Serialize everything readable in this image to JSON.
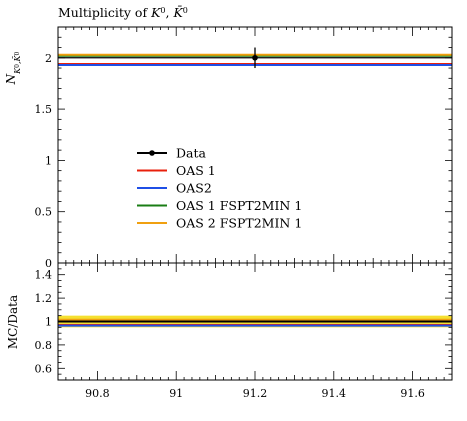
{
  "chart_data": {
    "type": "line",
    "title": "Multiplicity of K⁰, K̄⁰",
    "main": {
      "ylabel": "N_{K⁰,K̄⁰}",
      "xlim": [
        90.7,
        91.7
      ],
      "ylim": [
        0,
        2.3
      ],
      "yticks": [
        0,
        0.5,
        1,
        1.5,
        2
      ],
      "ytick_labels": [
        "0",
        "0.5",
        "1",
        "1.5",
        "2"
      ],
      "data": {
        "name": "Data",
        "x": 91.2,
        "y": 2.0,
        "err": 0.1,
        "color": "#000000"
      },
      "series": [
        {
          "name": "OAS 1",
          "value": 1.94,
          "color": "#e8200c"
        },
        {
          "name": "OAS2",
          "value": 1.93,
          "color": "#1f4fe6"
        },
        {
          "name": "OAS 1 FSPT2MIN 1",
          "value": 2.02,
          "color": "#1a7d14"
        },
        {
          "name": "OAS 2 FSPT2MIN 1",
          "value": 2.03,
          "color": "#f0a010"
        }
      ]
    },
    "ratio": {
      "ylabel": "MC/Data",
      "ylim": [
        0.5,
        1.5
      ],
      "yticks": [
        0.6,
        0.8,
        1,
        1.2,
        1.4
      ],
      "ytick_labels": [
        "0.6",
        "0.8",
        "1",
        "1.2",
        "1.4"
      ],
      "band": {
        "low": 0.95,
        "high": 1.05,
        "color": "#f5e030"
      },
      "series": [
        {
          "name": "OAS 1",
          "value": 0.97,
          "color": "#e8200c"
        },
        {
          "name": "OAS2",
          "value": 0.965,
          "color": "#1f4fe6"
        },
        {
          "name": "OAS 1 FSPT2MIN 1",
          "value": 1.01,
          "color": "#1a7d14"
        },
        {
          "name": "OAS 2 FSPT2MIN 1",
          "value": 1.015,
          "color": "#f0a010"
        },
        {
          "name": "Data",
          "value": 1.0,
          "color": "#000000"
        }
      ]
    },
    "xticks": [
      90.8,
      91,
      91.2,
      91.4,
      91.6
    ],
    "xtick_labels": [
      "90.8",
      "91",
      "91.2",
      "91.4",
      "91.6"
    ],
    "legend": {
      "placement": "center-left",
      "entries": [
        {
          "label": "Data",
          "color": "#000000",
          "marker": true
        },
        {
          "label": "OAS 1",
          "color": "#e8200c"
        },
        {
          "label": "OAS2",
          "color": "#1f4fe6"
        },
        {
          "label": "OAS 1 FSPT2MIN 1",
          "color": "#1a7d14"
        },
        {
          "label": "OAS 2 FSPT2MIN 1",
          "color": "#f0a010"
        }
      ]
    }
  }
}
